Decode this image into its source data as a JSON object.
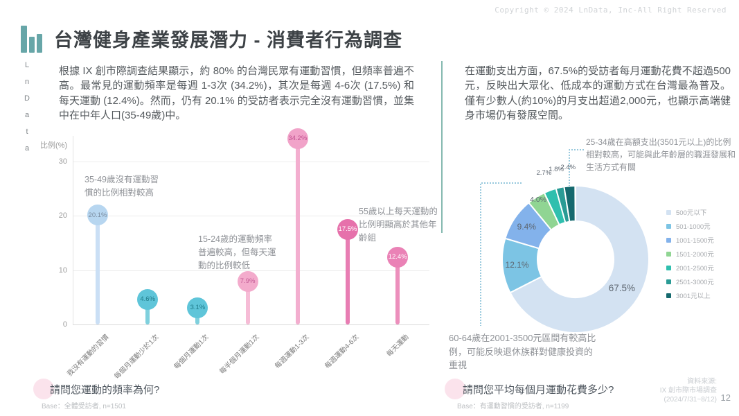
{
  "header": {
    "copyright": "Copyright © 2024 LnData, Inc-All Right Reserved",
    "title": "台灣健身產業發展潛力 - 消費者行為調查",
    "brand_vertical": "LnData"
  },
  "left_section": {
    "paragraph": "根據 IX 創市際調查結果顯示，約 80% 的台灣民眾有運動習慣，但頻率普遍不高。最常見的運動頻率是每週 1-3次 (34.2%)，其次是每週 4-6次 (17.5%) 和每天運動 (12.4%)。然而，仍有 20.1% 的受訪者表示完全沒有運動習慣，並集中在中年人口(35-49歲)中。",
    "question": "請問您運動的頻率為何?",
    "base_note": "Base：全體受訪者, n=1501"
  },
  "right_section": {
    "paragraph": "在運動支出方面，67.5%的受訪者每月運動花費不超過500元，反映出大眾化、低成本的運動方式在台灣最為普及。僅有少數人(約10%)的月支出超過2,000元，也顯示高端健身市場仍有發展空間。",
    "question": "請問您平均每個月運動花費多少?",
    "base_note": "Base：有運動習慣的受訪者, n=1199",
    "source": "資料來源:\nIX 創市際市場調查\n(2024/7/31~8/12)",
    "page_number": "12"
  },
  "chart_data": [
    {
      "type": "lollipop",
      "ylabel": "比例(%)",
      "categories": [
        "我沒有運動的習慣",
        "每個月運動少於1次",
        "每個月運動1次",
        "每半個月運動1次",
        "每週運動1-3次",
        "每週運動4-6次",
        "每天運動"
      ],
      "values": [
        20.1,
        4.6,
        3.1,
        7.9,
        34.2,
        17.5,
        12.4
      ],
      "labels": [
        "20.1%",
        "4.6%",
        "3.1%",
        "7.9%",
        "34.2%",
        "17.5%",
        "12.4%"
      ],
      "colors": [
        "#b7d6f0",
        "#5fc5d9",
        "#5fc5d9",
        "#f3abcc",
        "#f1a3c9",
        "#e671ab",
        "#ea82b6"
      ],
      "stem_colors": [
        "#cadff5",
        "#7fd0dd",
        "#7fd0dd",
        "#f6bcd6",
        "#f3aecf",
        "#e87db3",
        "#ec8fbc"
      ],
      "label_colors": [
        "#7b8da0",
        "#1e7a88",
        "#1e7a88",
        "#c35b95",
        "#c25090",
        "#ffffff",
        "#ffffff"
      ],
      "ylim": [
        0,
        35
      ],
      "yticks": [
        0,
        10,
        20,
        30
      ],
      "grid": true,
      "annotations": [
        "35-49歲沒有運動習慣的比例相對較高",
        "15-24歲的運動頻率普遍較高，但每天運動的比例較低",
        "55歲以上每天運動的比例明顯高於其他年齡組"
      ]
    },
    {
      "type": "donut",
      "categories": [
        "500元以下",
        "501-1000元",
        "1001-1500元",
        "1501-2000元",
        "2001-2500元",
        "2501-3000元",
        "3001元以上"
      ],
      "values": [
        67.5,
        12.1,
        9.4,
        4.0,
        2.7,
        1.8,
        2.4
      ],
      "labels": [
        "67.5%",
        "12.1%",
        "9.4%",
        "4.0%",
        "2.7%",
        "1.8%",
        "2.4%"
      ],
      "colors": [
        "#d3e2f2",
        "#7cc4e4",
        "#83b2eb",
        "#90d593",
        "#2fbfae",
        "#2a9b95",
        "#15696e"
      ],
      "legend_position": "right",
      "annotations": [
        "25-34歲在高額支出(3501元以上)的比例相對較高，可能與此年齡層的職涯發展和生活方式有關",
        "60-64歲在2001-3500元區間有較高比例，可能反映退休族群對健康投資的重視"
      ]
    }
  ]
}
